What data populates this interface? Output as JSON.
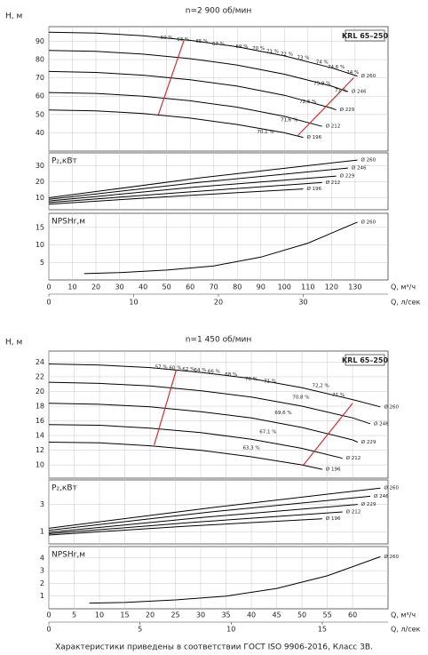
{
  "chart_data": [
    {
      "type": "line",
      "title": "n=2 900 об/мин",
      "model": "KRL 65–250",
      "ylabel_main": "H, м",
      "xlabel": "Q, м³/ч",
      "xlim": [
        0,
        144
      ],
      "xticks": [
        0,
        10,
        20,
        30,
        40,
        50,
        60,
        70,
        80,
        90,
        100,
        110,
        120,
        130
      ],
      "x2label": "Q, л/сек",
      "x2lim": [
        0,
        40
      ],
      "x2ticks": [
        0,
        10,
        20,
        30
      ],
      "panels": [
        {
          "ylim": [
            30,
            98
          ],
          "yticks": [
            40,
            50,
            60,
            70,
            80,
            90
          ],
          "series": [
            {
              "name": "Ø 260",
              "color": "#000000",
              "x": [
                0,
                20,
                40,
                60,
                80,
                100,
                120,
                131
              ],
              "values": [
                95,
                94.5,
                93,
                90.5,
                87,
                82,
                75.5,
                71
              ]
            },
            {
              "name": "Ø 246",
              "color": "#000000",
              "x": [
                0,
                20,
                40,
                60,
                80,
                100,
                120,
                127
              ],
              "values": [
                85,
                84.5,
                83,
                80.5,
                77,
                72,
                65.5,
                62.5
              ]
            },
            {
              "name": "Ø 229",
              "color": "#000000",
              "x": [
                0,
                20,
                40,
                60,
                80,
                100,
                120,
                122
              ],
              "values": [
                73.5,
                73,
                71.5,
                69,
                65.5,
                60.5,
                53.5,
                52.5
              ]
            },
            {
              "name": "Ø 212",
              "color": "#000000",
              "x": [
                0,
                20,
                40,
                60,
                80,
                100,
                116
              ],
              "values": [
                62,
                61.5,
                60,
                57.5,
                54,
                49,
                43.5
              ]
            },
            {
              "name": "Ø 196",
              "color": "#000000",
              "x": [
                0,
                20,
                40,
                60,
                80,
                100,
                108
              ],
              "values": [
                52.5,
                52,
                50.5,
                48,
                44.5,
                40,
                37.5
              ]
            }
          ],
          "limit_lines": [
            {
              "color": "#d03030",
              "x": [
                46.5,
                57.5
              ],
              "values": [
                50,
                91
              ]
            },
            {
              "color": "#d03030",
              "x": [
                105.7,
                129.4
              ],
              "values": [
                38.5,
                70
              ]
            }
          ],
          "annotations": [
            {
              "text": "60 %",
              "x": 50,
              "y": 92
            },
            {
              "text": "63 %",
              "x": 57,
              "y": 91
            },
            {
              "text": "65 %",
              "x": 65,
              "y": 90
            },
            {
              "text": "67 %",
              "x": 72,
              "y": 88.5
            },
            {
              "text": "69 %",
              "x": 82,
              "y": 87
            },
            {
              "text": "70 %",
              "x": 89,
              "y": 86
            },
            {
              "text": "71 %",
              "x": 95,
              "y": 84.5
            },
            {
              "text": "72 %",
              "x": 101,
              "y": 83
            },
            {
              "text": "73 %",
              "x": 108,
              "y": 81
            },
            {
              "text": "74 %",
              "x": 116,
              "y": 78.5
            },
            {
              "text": "74,6 %",
              "x": 122,
              "y": 76
            },
            {
              "text": "74 %",
              "x": 129,
              "y": 73
            },
            {
              "text": "73,9 %",
              "x": 116,
              "y": 67
            },
            {
              "text": "73 %",
              "x": 124,
              "y": 63
            },
            {
              "text": "72,6 %",
              "x": 110,
              "y": 57
            },
            {
              "text": "71,6 %",
              "x": 102,
              "y": 47
            },
            {
              "text": "70,1 %",
              "x": 92,
              "y": 40.5
            }
          ]
        },
        {
          "ylabel": "P₂,кВт",
          "ylim": [
            2.5,
            38
          ],
          "yticks": [
            10,
            20,
            30
          ],
          "series": [
            {
              "name": "Ø 260",
              "color": "#000000",
              "x": [
                0,
                65,
                131
              ],
              "values": [
                10,
                22.5,
                33.5
              ]
            },
            {
              "name": "Ø 246",
              "color": "#000000",
              "x": [
                0,
                63,
                127
              ],
              "values": [
                9,
                19.5,
                28.5
              ]
            },
            {
              "name": "Ø 229",
              "color": "#000000",
              "x": [
                0,
                61,
                122
              ],
              "values": [
                8,
                16.5,
                23.5
              ]
            },
            {
              "name": "Ø 212",
              "color": "#000000",
              "x": [
                0,
                58,
                116
              ],
              "values": [
                7,
                13.5,
                19.5
              ]
            },
            {
              "name": "Ø 196",
              "color": "#000000",
              "x": [
                0,
                54,
                108
              ],
              "values": [
                6,
                11,
                15.5
              ]
            }
          ]
        },
        {
          "ylabel": "NPSHr,м",
          "ylim": [
            0,
            19
          ],
          "yticks": [
            5,
            10,
            15
          ],
          "series": [
            {
              "name": "Ø 260",
              "color": "#000000",
              "x": [
                15,
                30,
                50,
                70,
                90,
                110,
                131
              ],
              "values": [
                1.8,
                2.1,
                2.8,
                4,
                6.5,
                10.5,
                16.5
              ]
            }
          ]
        }
      ]
    },
    {
      "type": "line",
      "title": "n=1 450 об/мин",
      "model": "KRL 65–250",
      "ylabel_main": "H, м",
      "xlabel": "Q, м³/ч",
      "xlim": [
        0,
        67
      ],
      "xticks": [
        0,
        5,
        10,
        15,
        20,
        25,
        30,
        35,
        40,
        45,
        50,
        55,
        60
      ],
      "x2label": "Q, л/сек",
      "x2lim": [
        0,
        18.61
      ],
      "x2ticks": [
        0,
        5,
        10,
        15
      ],
      "panels": [
        {
          "ylim": [
            8.2,
            25.5
          ],
          "yticks": [
            10,
            12,
            14,
            16,
            18,
            20,
            22,
            24
          ],
          "series": [
            {
              "name": "Ø 260",
              "color": "#000000",
              "x": [
                0,
                10,
                20,
                30,
                40,
                50,
                60,
                65.5
              ],
              "values": [
                23.75,
                23.6,
                23.25,
                22.6,
                21.75,
                20.5,
                18.9,
                17.9
              ]
            },
            {
              "name": "Ø 246",
              "color": "#000000",
              "x": [
                0,
                10,
                20,
                30,
                40,
                50,
                60,
                63.5
              ],
              "values": [
                21.25,
                21.1,
                20.75,
                20.1,
                19.25,
                18,
                16.4,
                15.6
              ]
            },
            {
              "name": "Ø 229",
              "color": "#000000",
              "x": [
                0,
                10,
                20,
                30,
                40,
                50,
                60,
                61
              ],
              "values": [
                18.4,
                18.25,
                17.9,
                17.25,
                16.4,
                15.1,
                13.4,
                13.1
              ]
            },
            {
              "name": "Ø 212",
              "color": "#000000",
              "x": [
                0,
                10,
                20,
                30,
                40,
                50,
                58
              ],
              "values": [
                15.5,
                15.4,
                15,
                14.4,
                13.5,
                12.25,
                10.9
              ]
            },
            {
              "name": "Ø 196",
              "color": "#000000",
              "x": [
                0,
                10,
                20,
                30,
                40,
                50,
                54
              ],
              "values": [
                13.1,
                13,
                12.6,
                12,
                11.1,
                10,
                9.4
              ]
            }
          ],
          "limit_lines": [
            {
              "color": "#d03030",
              "x": [
                20.8,
                25.2
              ],
              "values": [
                12.7,
                23
              ]
            },
            {
              "color": "#d03030",
              "x": [
                50.3,
                60
              ],
              "values": [
                10,
                18.4
              ]
            }
          ],
          "annotations": [
            {
              "text": "57 %",
              "x": 22.2,
              "y": 23.3
            },
            {
              "text": "60 %",
              "x": 25,
              "y": 23.2
            },
            {
              "text": "62 %",
              "x": 27.6,
              "y": 23
            },
            {
              "text": "64 %",
              "x": 29.9,
              "y": 22.9
            },
            {
              "text": "66 %",
              "x": 32.6,
              "y": 22.7
            },
            {
              "text": "68 %",
              "x": 36,
              "y": 22.3
            },
            {
              "text": "70 %",
              "x": 40,
              "y": 21.7
            },
            {
              "text": "71 %",
              "x": 43.7,
              "y": 21.4
            },
            {
              "text": "72,2 %",
              "x": 53.7,
              "y": 20.8
            },
            {
              "text": "71 %",
              "x": 57.2,
              "y": 19.5
            },
            {
              "text": "70,8 %",
              "x": 49.8,
              "y": 19.2
            },
            {
              "text": "69,6 %",
              "x": 46.3,
              "y": 17.1
            },
            {
              "text": "67,1 %",
              "x": 43.3,
              "y": 14.5
            },
            {
              "text": "63,3 %",
              "x": 40,
              "y": 12.3
            }
          ]
        },
        {
          "ylabel": "P₂,кВт",
          "ylim": [
            0.1,
            4.8
          ],
          "yticks": [
            1,
            3
          ],
          "series": [
            {
              "name": "Ø 260",
              "color": "#000000",
              "x": [
                0,
                33,
                65.5
              ],
              "values": [
                1.25,
                2.8,
                4.2
              ]
            },
            {
              "name": "Ø 246",
              "color": "#000000",
              "x": [
                0,
                32,
                63.5
              ],
              "values": [
                1.1,
                2.45,
                3.6
              ]
            },
            {
              "name": "Ø 229",
              "color": "#000000",
              "x": [
                0,
                30.5,
                61
              ],
              "values": [
                0.95,
                2.05,
                3
              ]
            },
            {
              "name": "Ø 212",
              "color": "#000000",
              "x": [
                0,
                29,
                58
              ],
              "values": [
                0.85,
                1.7,
                2.45
              ]
            },
            {
              "name": "Ø 196",
              "color": "#000000",
              "x": [
                0,
                27,
                54
              ],
              "values": [
                0.75,
                1.4,
                1.95
              ]
            }
          ]
        },
        {
          "ylabel": "NPSHr,м",
          "ylim": [
            0,
            4.9
          ],
          "yticks": [
            1,
            2,
            3,
            4
          ],
          "series": [
            {
              "name": "Ø 260",
              "color": "#000000",
              "x": [
                8,
                15,
                25,
                35,
                45,
                55,
                65.5
              ],
              "values": [
                0.45,
                0.5,
                0.7,
                1,
                1.6,
                2.6,
                4.1
              ]
            }
          ]
        }
      ]
    }
  ],
  "footer": "Характеристики приведены в соответствии  ГОСТ ISO 9906-2016, Класс 3В."
}
